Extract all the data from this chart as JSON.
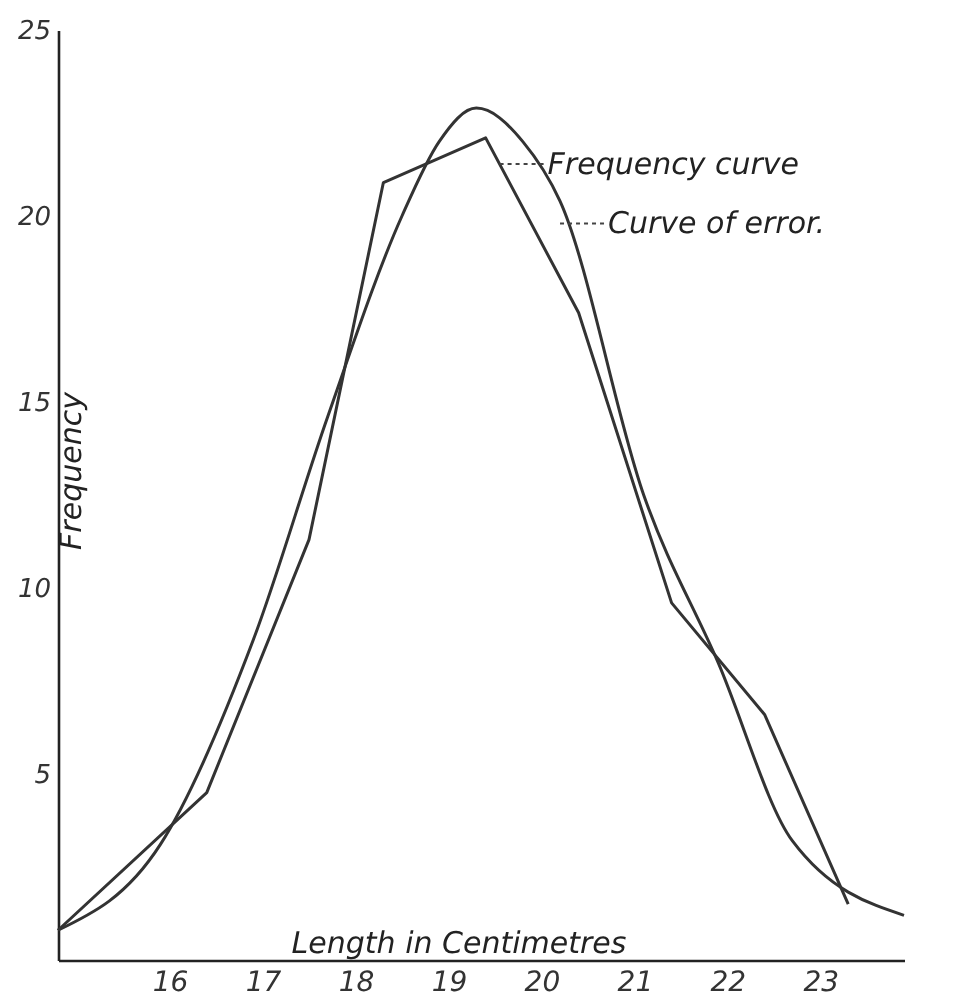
{
  "chart_data": {
    "type": "line",
    "xlabel": "Length in Centimetres",
    "ylabel": "Frequency",
    "xlim": [
      14.8,
      23.9
    ],
    "ylim": [
      0,
      25
    ],
    "xticks": [
      16,
      17,
      18,
      19,
      20,
      21,
      22,
      23
    ],
    "yticks": [
      5,
      10,
      15,
      20,
      25
    ],
    "grid": false,
    "series": [
      {
        "color": "#333333",
        "x": [
          14.8,
          16.4,
          17.5,
          18.3,
          19.4,
          20.4,
          21.4,
          22.4,
          23.3
        ],
        "values": [
          0.8,
          4.5,
          11.3,
          20.9,
          22.1,
          17.4,
          9.6,
          6.6,
          1.5
        ]
      },
      {
        "color": "#333333",
        "x": [
          14.8,
          15.9,
          16.9,
          17.7,
          18.5,
          18.9,
          19.3,
          19.8,
          20.2,
          21.1,
          21.9,
          22.7,
          23.9
        ],
        "values": [
          0.8,
          3.1,
          8.6,
          14.6,
          20,
          22,
          22.9,
          22,
          20.4,
          12.5,
          8,
          3.2,
          1.2
        ]
      }
    ],
    "annotations": [
      {
        "text": "Frequency curve",
        "x": 19.55,
        "y": 21.4
      },
      {
        "text": "Curve of error.",
        "x": 20.2,
        "y": 19.8
      }
    ]
  }
}
